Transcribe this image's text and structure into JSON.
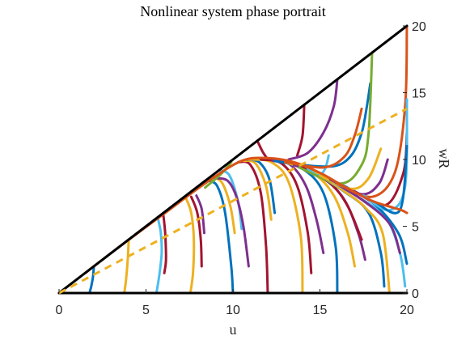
{
  "chart_data": {
    "type": "line",
    "title": "Nonlinear system phase portrait",
    "xlabel": "u",
    "ylabel": "wR",
    "xlim": [
      0,
      20
    ],
    "ylim": [
      0,
      20
    ],
    "xticks": [
      0,
      5,
      10,
      15,
      20
    ],
    "yticks": [
      0,
      5,
      10,
      15,
      20
    ],
    "y_axis_location": "right",
    "grid": false,
    "legend": "none",
    "colors": [
      "#0072BD",
      "#EDB120",
      "#4DBEEE",
      "#A2142F",
      "#7E2F8E",
      "#77AC30",
      "#D95319"
    ],
    "series": [
      {
        "style": "solid",
        "color": "#000000",
        "x": [
          0,
          20
        ],
        "y": [
          0,
          20
        ]
      },
      {
        "style": "solid",
        "color": "#000000",
        "x": [
          0,
          20
        ],
        "y": [
          0,
          0
        ]
      },
      {
        "style": "dashed",
        "color": "#EDB120",
        "x": [
          0,
          20
        ],
        "y": [
          0,
          13.8
        ]
      },
      {
        "color": "#0072BD",
        "x": [
          2.0,
          1.95,
          1.85,
          1.75
        ],
        "y": [
          1.95,
          1.2,
          0.5,
          0
        ]
      },
      {
        "color": "#EDB120",
        "x": [
          4.0,
          3.95,
          3.85,
          3.75
        ],
        "y": [
          3.85,
          2.5,
          1.0,
          0
        ]
      },
      {
        "color": "#4DBEEE",
        "x": [
          5.7,
          5.85,
          5.9,
          5.75,
          5.6
        ],
        "y": [
          5.5,
          4.5,
          3.0,
          1.2,
          0
        ]
      },
      {
        "color": "#A2142F",
        "x": [
          6.0,
          6.1,
          6.15,
          6.05
        ],
        "y": [
          5.8,
          4.5,
          2.5,
          1.5
        ]
      },
      {
        "color": "#EDB120",
        "x": [
          7.3,
          7.6,
          7.75,
          7.7,
          7.55
        ],
        "y": [
          7.1,
          6.0,
          4.0,
          1.5,
          0
        ]
      },
      {
        "color": "#A2142F",
        "x": [
          7.6,
          7.95,
          8.15,
          8.2
        ],
        "y": [
          7.2,
          6.0,
          4.0,
          2.0
        ]
      },
      {
        "color": "#7E2F8E",
        "x": [
          7.9,
          8.2,
          8.35
        ],
        "y": [
          7.3,
          6.3,
          4.5
        ]
      },
      {
        "color": "#0072BD",
        "x": [
          8.6,
          9.1,
          9.55,
          9.9,
          10.0
        ],
        "y": [
          8.4,
          8.0,
          6.0,
          2.0,
          0
        ]
      },
      {
        "color": "#EDB120",
        "x": [
          8.9,
          9.4,
          9.85,
          10.1
        ],
        "y": [
          8.7,
          8.2,
          6.5,
          4.5
        ]
      },
      {
        "color": "#4DBEEE",
        "x": [
          9.2,
          9.8,
          10.3,
          10.5
        ],
        "y": [
          9.2,
          8.8,
          6.8,
          4.8
        ]
      },
      {
        "color": "#7E2F8E",
        "x": [
          9.0,
          9.7,
          10.2,
          10.6,
          10.9
        ],
        "y": [
          8.6,
          8.4,
          7.2,
          5.0,
          2.0
        ]
      },
      {
        "color": "#A2142F",
        "x": [
          10.3,
          11.0,
          11.6,
          11.9,
          12.0
        ],
        "y": [
          9.8,
          9.6,
          7.5,
          3.5,
          0
        ]
      },
      {
        "color": "#EDB120",
        "x": [
          10.6,
          11.3,
          11.9,
          12.2
        ],
        "y": [
          9.9,
          9.7,
          8.0,
          5.5
        ]
      },
      {
        "color": "#0072BD",
        "x": [
          10.8,
          11.5,
          12.1,
          12.4
        ],
        "y": [
          10.0,
          9.8,
          8.5,
          6.0
        ]
      },
      {
        "color": "#77AC30",
        "x": [
          9.9,
          9.3,
          8.4
        ],
        "y": [
          9.8,
          8.9,
          7.9
        ]
      },
      {
        "color": "#EDB120",
        "x": [
          10.9,
          12.2,
          13.2,
          13.9,
          14.0
        ],
        "y": [
          10.0,
          9.8,
          8.3,
          4.2,
          0
        ]
      },
      {
        "color": "#A2142F",
        "x": [
          11.6,
          12.8,
          13.7,
          14.3,
          14.5
        ],
        "y": [
          10.0,
          9.7,
          8.0,
          4.5,
          1.5
        ]
      },
      {
        "color": "#7E2F8E",
        "x": [
          12.3,
          13.3,
          14.2,
          14.8,
          15.2
        ],
        "y": [
          9.9,
          9.6,
          8.0,
          5.5,
          3.0
        ]
      },
      {
        "color": "#0072BD",
        "x": [
          12.4,
          14.0,
          15.2,
          15.9,
          16.0
        ],
        "y": [
          9.9,
          9.3,
          7.5,
          3.5,
          0
        ]
      },
      {
        "color": "#EDB120",
        "x": [
          13.0,
          14.6,
          15.8,
          16.6,
          17.0
        ],
        "y": [
          9.8,
          9.0,
          7.3,
          4.5,
          2.0
        ]
      },
      {
        "color": "#7E2F8E",
        "x": [
          13.5,
          15.2,
          16.4,
          17.2,
          17.6
        ],
        "y": [
          9.6,
          8.6,
          7.0,
          4.5,
          2.5
        ]
      },
      {
        "color": "#A2142F",
        "x": [
          14.0,
          15.6,
          16.6,
          17.4
        ],
        "y": [
          9.4,
          8.2,
          6.5,
          4.0
        ]
      },
      {
        "color": "#0072BD",
        "x": [
          14.4,
          16.4,
          17.8,
          18.5,
          18.7
        ],
        "y": [
          9.2,
          7.6,
          6.0,
          3.0,
          0.5
        ]
      },
      {
        "color": "#EDB120",
        "x": [
          14.6,
          16.2,
          17.6,
          18.6,
          19.0
        ],
        "y": [
          9.1,
          7.8,
          6.4,
          4.5,
          0
        ]
      },
      {
        "color": "#4DBEEE",
        "x": [
          15.0,
          17.2,
          18.8,
          19.6,
          19.9
        ],
        "y": [
          8.8,
          7.2,
          5.6,
          3.0,
          0.5
        ]
      },
      {
        "color": "#7E2F8E",
        "x": [
          15.4,
          17.4,
          19.0,
          19.6
        ],
        "y": [
          8.6,
          7.0,
          5.2,
          3.0
        ]
      },
      {
        "color": "#0072BD",
        "x": [
          15.8,
          18.0,
          19.5,
          20.0
        ],
        "y": [
          8.4,
          6.8,
          4.5,
          2.2
        ]
      },
      {
        "color": "#A2142F",
        "x": [
          12.0,
          11.7,
          11.4
        ],
        "y": [
          10.0,
          10.6,
          11.4
        ]
      },
      {
        "color": "#A2142F",
        "x": [
          13.7,
          14.0,
          14.1
        ],
        "y": [
          10.3,
          11.8,
          14.1
        ]
      },
      {
        "color": "#7E2F8E",
        "x": [
          13.2,
          14.3,
          15.2,
          15.8,
          16.0
        ],
        "y": [
          10.0,
          10.5,
          12.0,
          14.0,
          16.0
        ]
      },
      {
        "color": "#4DBEEE",
        "x": [
          14.3,
          14.9,
          15.3,
          15.5
        ],
        "y": [
          9.3,
          8.8,
          9.3,
          10.3
        ]
      },
      {
        "color": "#0072BD",
        "x": [
          13.8,
          15.8,
          16.8,
          17.4,
          17.7,
          17.9
        ],
        "y": [
          9.6,
          9.5,
          10.3,
          12.0,
          14.0,
          15.7
        ]
      },
      {
        "color": "#D95319",
        "x": [
          13.0,
          15.2,
          16.4,
          17.0,
          17.4
        ],
        "y": [
          9.8,
          9.4,
          10.2,
          11.8,
          13.8
        ]
      },
      {
        "color": "#77AC30",
        "x": [
          13.8,
          16.2,
          17.4,
          17.8,
          18.0
        ],
        "y": [
          9.4,
          8.2,
          9.6,
          12.0,
          18.0
        ]
      },
      {
        "color": "#EDB120",
        "x": [
          15.0,
          16.8,
          17.8,
          18.5
        ],
        "y": [
          8.8,
          7.8,
          8.6,
          10.8
        ]
      },
      {
        "color": "#7E2F8E",
        "x": [
          15.6,
          17.4,
          18.4,
          18.9
        ],
        "y": [
          8.5,
          7.4,
          8.2,
          10.0
        ]
      },
      {
        "color": "#D95319",
        "x": [
          16.0,
          18.0,
          19.3,
          19.9,
          20.0
        ],
        "y": [
          8.2,
          7.2,
          9.0,
          14.0,
          20.0
        ]
      },
      {
        "color": "#A2142F",
        "x": [
          17.0,
          18.8,
          19.8,
          20.0
        ],
        "y": [
          7.6,
          6.6,
          9.0,
          12.0
        ]
      },
      {
        "color": "#4DBEEE",
        "x": [
          17.5,
          19.0,
          19.9,
          20.0
        ],
        "y": [
          7.3,
          6.2,
          8.0,
          14.5
        ]
      },
      {
        "color": "#0072BD",
        "x": [
          18.2,
          19.6,
          20.0
        ],
        "y": [
          6.8,
          6.2,
          11.0
        ]
      },
      {
        "color": "#D95319",
        "x": [
          1.5,
          3.5,
          6.0,
          8.5,
          10.5,
          12.0,
          13.5,
          15.0,
          16.5,
          18.0,
          19.2,
          19.7,
          20.0
        ],
        "y": [
          1.5,
          3.5,
          5.9,
          8.3,
          9.9,
          10.1,
          9.8,
          9.0,
          7.9,
          6.9,
          6.4,
          6.2,
          6.0
        ]
      }
    ]
  }
}
